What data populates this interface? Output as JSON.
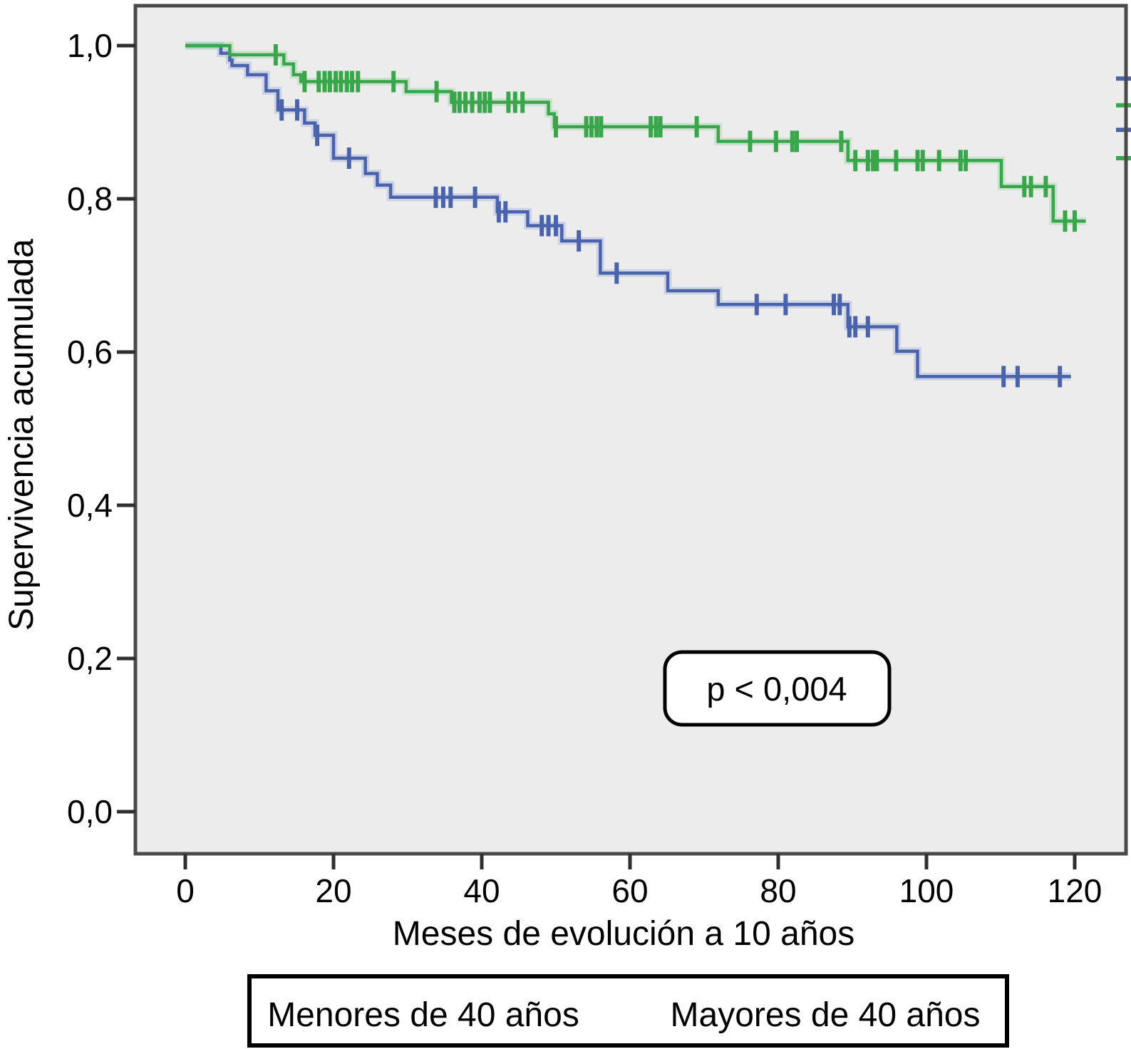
{
  "chart_data": {
    "type": "line",
    "subtype": "kaplan-meier-step-survival",
    "title": "",
    "xlabel": "Meses de evolución a 10 años",
    "ylabel": "Supervivencia acumulada",
    "xlim": [
      -6.7,
      126.9
    ],
    "ylim": [
      -0.055,
      1.052
    ],
    "grid": false,
    "plot_background": "#ececec",
    "plot_border_color": "#4a4a4a",
    "x_ticks": {
      "values": [
        0,
        20,
        40,
        60,
        80,
        100,
        120
      ],
      "labels": [
        "0",
        "20",
        "40",
        "60",
        "80",
        "100",
        "120"
      ]
    },
    "y_ticks": {
      "values": [
        0.0,
        0.2,
        0.4,
        0.6,
        0.8,
        1.0
      ],
      "labels": [
        "0,0",
        "0,2",
        "0,4",
        "0,6",
        "0,8",
        "1,0"
      ]
    },
    "annotation": {
      "text": "p < 0,004"
    },
    "series": [
      {
        "name": "Menores de 40 años",
        "key": "menores",
        "color": "#4a63ab",
        "halo_color": "#a9b6dc",
        "end_month": 119.5,
        "steps": [
          [
            0,
            1.0
          ],
          [
            4.8,
            0.99
          ],
          [
            6.0,
            0.981
          ],
          [
            6.3,
            0.974
          ],
          [
            8.4,
            0.962
          ],
          [
            10.9,
            0.941
          ],
          [
            12.5,
            0.916
          ],
          [
            16.1,
            0.899
          ],
          [
            17.5,
            0.883
          ],
          [
            20.0,
            0.853
          ],
          [
            24.3,
            0.833
          ],
          [
            25.9,
            0.818
          ],
          [
            27.7,
            0.802
          ],
          [
            42.1,
            0.783
          ],
          [
            46.2,
            0.765
          ],
          [
            50.8,
            0.745
          ],
          [
            56.0,
            0.703
          ],
          [
            65.1,
            0.68
          ],
          [
            71.9,
            0.662
          ],
          [
            89.4,
            0.633
          ],
          [
            96.0,
            0.601
          ],
          [
            98.8,
            0.568
          ]
        ],
        "censors": [
          [
            13.0,
            0.916
          ],
          [
            15.1,
            0.916
          ],
          [
            17.8,
            0.883
          ],
          [
            22.1,
            0.853
          ],
          [
            33.8,
            0.802
          ],
          [
            34.8,
            0.802
          ],
          [
            35.8,
            0.802
          ],
          [
            39.1,
            0.802
          ],
          [
            42.3,
            0.783
          ],
          [
            43.2,
            0.783
          ],
          [
            48.1,
            0.765
          ],
          [
            49.0,
            0.765
          ],
          [
            50.0,
            0.765
          ],
          [
            53.1,
            0.745
          ],
          [
            58.2,
            0.703
          ],
          [
            77.1,
            0.662
          ],
          [
            81.0,
            0.662
          ],
          [
            87.5,
            0.662
          ],
          [
            88.3,
            0.662
          ],
          [
            89.6,
            0.633
          ],
          [
            90.4,
            0.633
          ],
          [
            92.1,
            0.633
          ],
          [
            110.4,
            0.568
          ],
          [
            112.3,
            0.568
          ],
          [
            118.0,
            0.568
          ]
        ]
      },
      {
        "name": "Mayores de 40 años",
        "key": "mayores",
        "color": "#3aa64b",
        "halo_color": "#a8d8ab",
        "end_month": 121.5,
        "steps": [
          [
            0,
            1.0
          ],
          [
            6.0,
            0.988
          ],
          [
            13.3,
            0.976
          ],
          [
            14.6,
            0.962
          ],
          [
            15.6,
            0.953
          ],
          [
            29.8,
            0.94
          ],
          [
            35.9,
            0.926
          ],
          [
            49.0,
            0.911
          ],
          [
            49.8,
            0.894
          ],
          [
            71.9,
            0.875
          ],
          [
            89.4,
            0.85
          ],
          [
            110.1,
            0.816
          ],
          [
            117.1,
            0.771
          ]
        ],
        "censors": [
          [
            12.2,
            0.988
          ],
          [
            16.1,
            0.953
          ],
          [
            18.0,
            0.953
          ],
          [
            18.8,
            0.953
          ],
          [
            19.5,
            0.953
          ],
          [
            20.3,
            0.953
          ],
          [
            21.0,
            0.953
          ],
          [
            21.8,
            0.953
          ],
          [
            22.5,
            0.953
          ],
          [
            23.3,
            0.953
          ],
          [
            28.1,
            0.953
          ],
          [
            33.9,
            0.94
          ],
          [
            36.3,
            0.926
          ],
          [
            37.0,
            0.926
          ],
          [
            37.8,
            0.926
          ],
          [
            38.7,
            0.926
          ],
          [
            39.7,
            0.926
          ],
          [
            40.4,
            0.926
          ],
          [
            41.1,
            0.926
          ],
          [
            43.6,
            0.926
          ],
          [
            44.5,
            0.926
          ],
          [
            45.5,
            0.926
          ],
          [
            50.0,
            0.894
          ],
          [
            54.1,
            0.894
          ],
          [
            54.8,
            0.894
          ],
          [
            55.5,
            0.894
          ],
          [
            56.1,
            0.894
          ],
          [
            62.8,
            0.894
          ],
          [
            63.5,
            0.894
          ],
          [
            64.1,
            0.894
          ],
          [
            69.0,
            0.894
          ],
          [
            76.2,
            0.875
          ],
          [
            79.7,
            0.875
          ],
          [
            81.9,
            0.875
          ],
          [
            82.5,
            0.875
          ],
          [
            88.5,
            0.875
          ],
          [
            90.4,
            0.85
          ],
          [
            92.1,
            0.85
          ],
          [
            92.8,
            0.85
          ],
          [
            93.3,
            0.85
          ],
          [
            95.9,
            0.85
          ],
          [
            98.8,
            0.85
          ],
          [
            99.5,
            0.85
          ],
          [
            101.7,
            0.85
          ],
          [
            104.6,
            0.85
          ],
          [
            105.3,
            0.85
          ],
          [
            113.2,
            0.816
          ],
          [
            114.1,
            0.816
          ],
          [
            116.1,
            0.816
          ],
          [
            118.7,
            0.771
          ],
          [
            120.0,
            0.771
          ]
        ]
      }
    ],
    "right_edge_marks": [
      {
        "series": "menores",
        "value": 0.957
      },
      {
        "series": "mayores",
        "value": 0.922
      },
      {
        "series": "menores",
        "value": 0.89
      },
      {
        "series": "mayores",
        "value": 0.853
      }
    ]
  },
  "legend": {
    "items": [
      {
        "label": "Menores de 40 años",
        "color": "#5b80c4"
      },
      {
        "label": "Mayores de 40 años",
        "color": "#17a253"
      }
    ]
  }
}
